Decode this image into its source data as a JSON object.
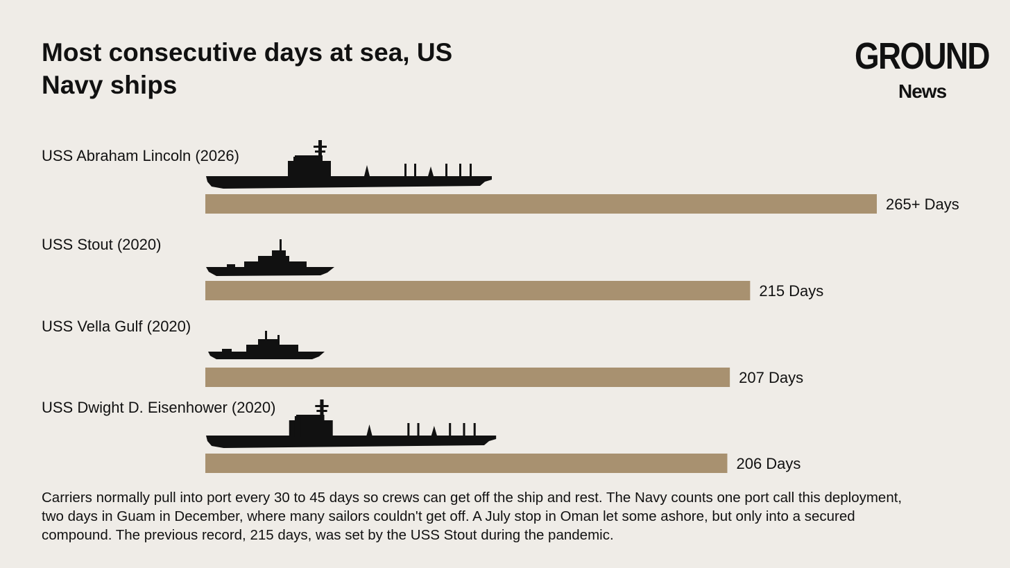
{
  "chart_data": {
    "type": "bar",
    "title": "Most consecutive days at sea, US Navy ships",
    "categories": [
      "USS Abraham Lincoln (2026)",
      "USS Stout (2020)",
      "USS Vella Gulf (2020)",
      "USS Dwight D. Eisenhower (2020)"
    ],
    "values": [
      265,
      215,
      207,
      206
    ],
    "value_labels": [
      "265+ Days",
      "215 Days",
      "207 Days",
      "206 Days"
    ],
    "color": "#a89170",
    "note": "Carriers normally pull into port every 30 to 45 days so crews can get off the ship and rest. The Navy counts one port call this deployment, two days in Guam in December, where many sailors couldn't get off. A July stop in Oman let some ashore, but only into a secured compound. The previous record, 215 days, was set by the USS Stout during the pandemic."
  },
  "logo": {
    "name": "GROUND",
    "subname": "News"
  }
}
